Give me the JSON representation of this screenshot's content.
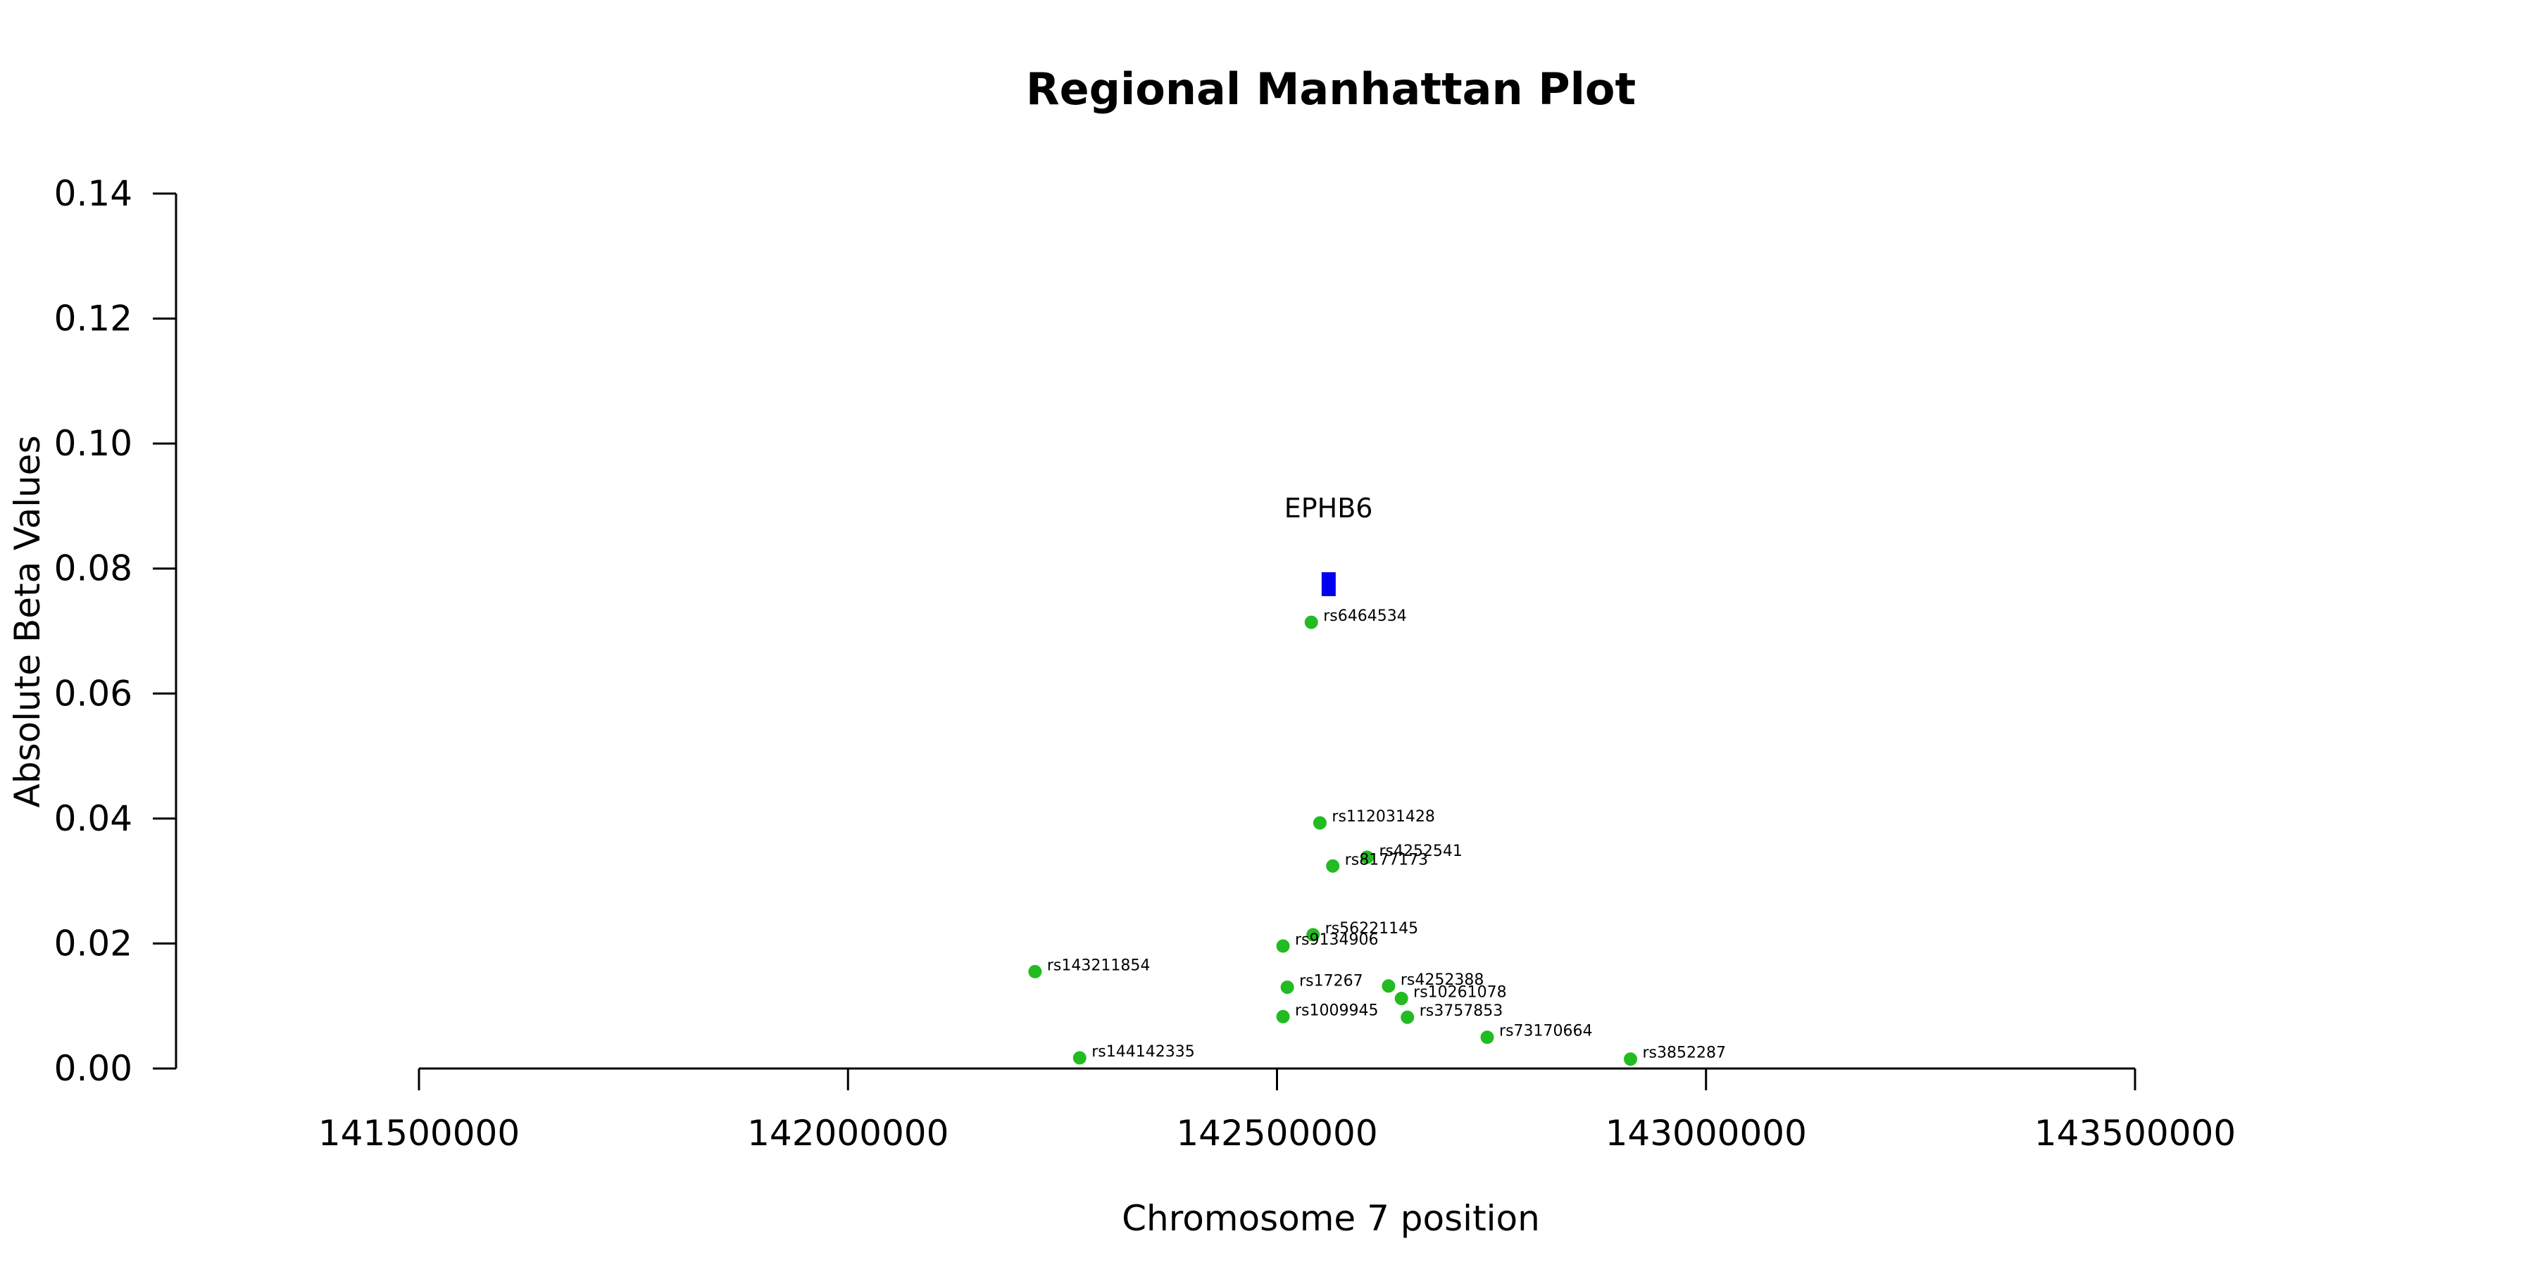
{
  "chart_data": {
    "type": "scatter",
    "title": "Regional Manhattan Plot",
    "xlabel": "Chromosome 7 position",
    "ylabel": "Absolute Beta Values",
    "xlim": [
      141500000,
      143500000
    ],
    "ylim": [
      0,
      0.14
    ],
    "x_ticks": [
      141500000,
      142000000,
      142500000,
      143000000,
      143500000
    ],
    "y_ticks": [
      "0.00",
      "0.02",
      "0.04",
      "0.06",
      "0.08",
      "0.10",
      "0.12",
      "0.14"
    ],
    "grid": false,
    "point_color": "#22bb22",
    "gene_color": "#0000ee",
    "gene": {
      "name": "EPHB6",
      "start": 142552000,
      "end": 142568000,
      "y": 0.0775
    },
    "points": [
      {
        "label": "rs6464534",
        "x": 142540000,
        "y": 0.0714
      },
      {
        "label": "rs112031428",
        "x": 142550000,
        "y": 0.0393
      },
      {
        "label": "rs4252541",
        "x": 142605000,
        "y": 0.0338
      },
      {
        "label": "rs8177173",
        "x": 142565000,
        "y": 0.0324
      },
      {
        "label": "rs56221145",
        "x": 142542000,
        "y": 0.0214
      },
      {
        "label": "rs9134906",
        "x": 142507000,
        "y": 0.0196
      },
      {
        "label": "rs143211854",
        "x": 142218000,
        "y": 0.0155
      },
      {
        "label": "rs17267",
        "x": 142512000,
        "y": 0.013
      },
      {
        "label": "rs4252388",
        "x": 142630000,
        "y": 0.0132
      },
      {
        "label": "rs10261078",
        "x": 142645000,
        "y": 0.0112
      },
      {
        "label": "rs3757853",
        "x": 142652000,
        "y": 0.0082
      },
      {
        "label": "rs1009945",
        "x": 142507000,
        "y": 0.0083
      },
      {
        "label": "rs73170664",
        "x": 142745000,
        "y": 0.005
      },
      {
        "label": "rs144142335",
        "x": 142270000,
        "y": 0.0017
      },
      {
        "label": "rs3852287",
        "x": 142912000,
        "y": 0.0015
      }
    ]
  }
}
